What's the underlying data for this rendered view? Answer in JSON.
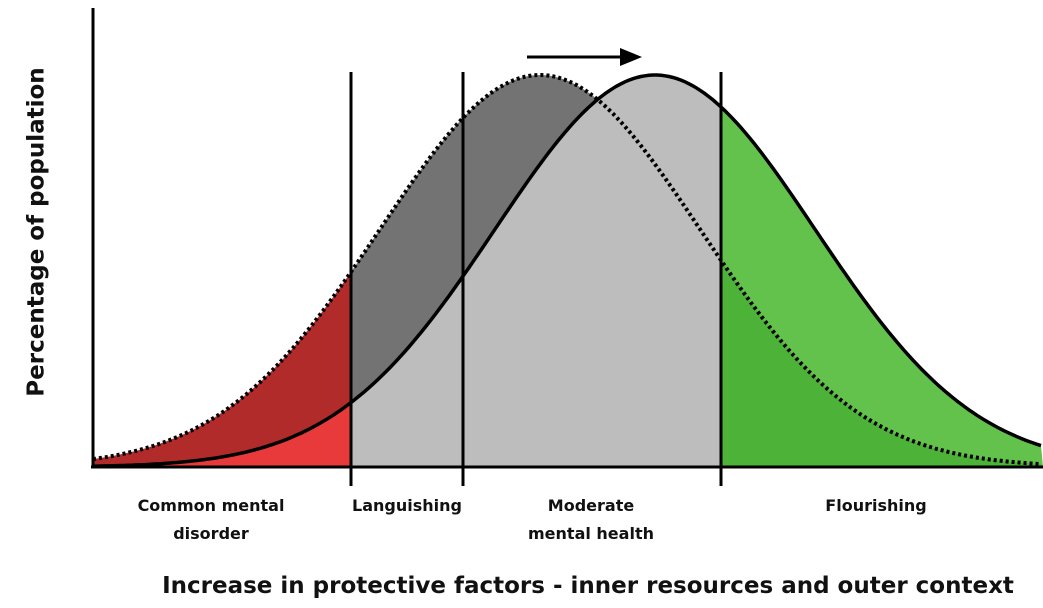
{
  "y_axis_label": "Percentage of population",
  "x_axis_label": "Increase in protective factors - inner resources and outer context",
  "regions": [
    {
      "lines": [
        "Common mental",
        "disorder"
      ]
    },
    {
      "lines": [
        "Languishing"
      ]
    },
    {
      "lines": [
        "Moderate",
        "mental health"
      ]
    },
    {
      "lines": [
        "Flourishing"
      ]
    }
  ]
}
